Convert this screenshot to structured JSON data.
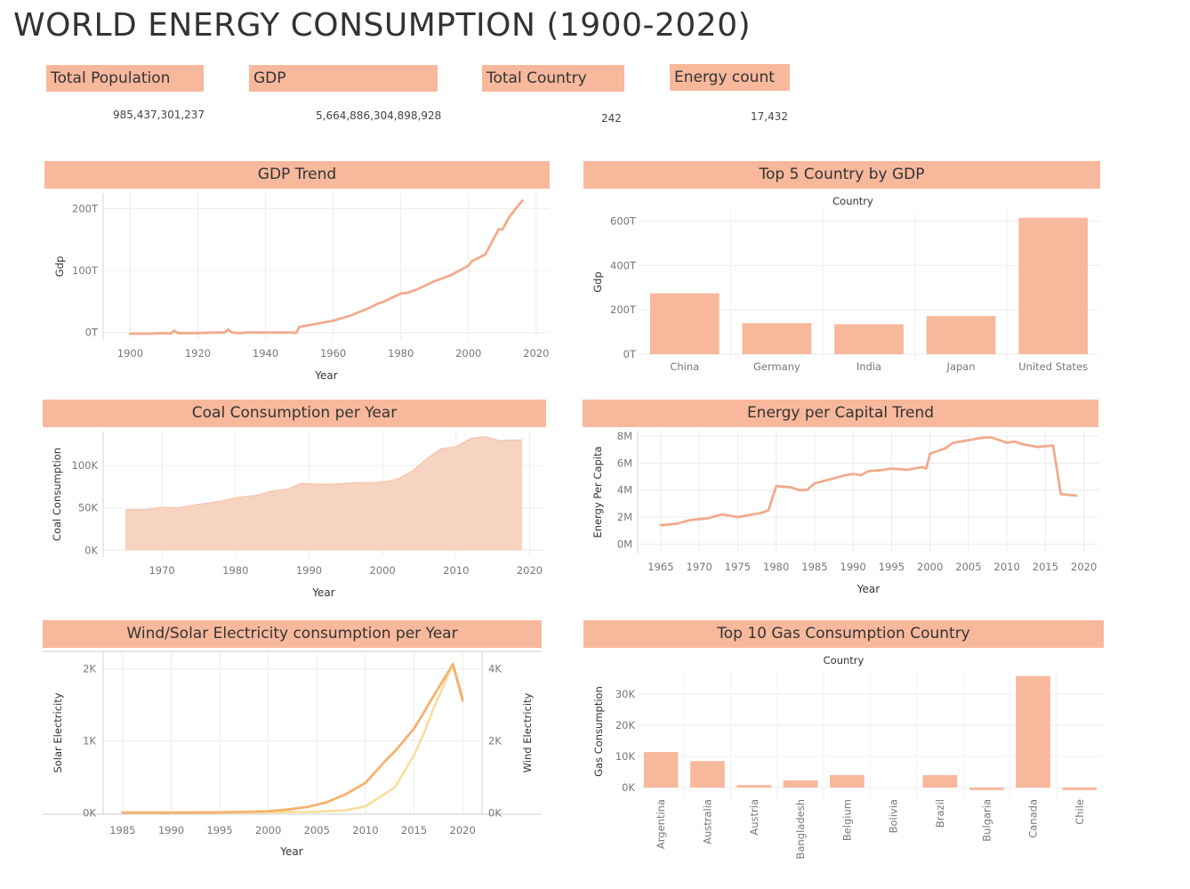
{
  "page_title": "WORLD ENERGY CONSUMPTION (1900-2020)",
  "colors": {
    "accent": "#f7b89c",
    "line": "#f2ab8c",
    "solar": "#f6b16d",
    "wind": "#f7df9a"
  },
  "kpis": [
    {
      "label": "Total Population",
      "value": "985,437,301,237"
    },
    {
      "label": "GDP",
      "value": "5,664,886,304,898,928"
    },
    {
      "label": "Total Country",
      "value": "242"
    },
    {
      "label": "Energy count",
      "value": "17,432"
    }
  ],
  "chart_data": [
    {
      "id": "gdp_trend",
      "type": "line",
      "title": "GDP Trend",
      "xlabel": "Year",
      "ylabel": "Gdp",
      "xlim": [
        1892,
        2024
      ],
      "ylim": [
        -12,
        225
      ],
      "xticks": [
        1900,
        1920,
        1940,
        1960,
        1980,
        2000,
        2020
      ],
      "yticks": [
        {
          "v": 0,
          "label": "0T"
        },
        {
          "v": 100,
          "label": "100T"
        },
        {
          "v": 200,
          "label": "200T"
        }
      ],
      "x": [
        1900,
        1905,
        1910,
        1912,
        1913,
        1914,
        1915,
        1920,
        1925,
        1928,
        1929,
        1930,
        1932,
        1935,
        1940,
        1945,
        1948,
        1949,
        1950,
        1955,
        1960,
        1965,
        1970,
        1973,
        1975,
        1980,
        1982,
        1985,
        1990,
        1995,
        2000,
        2001,
        2005,
        2008,
        2009,
        2010,
        2012,
        2015,
        2016
      ],
      "y": [
        -2,
        -2,
        -1,
        -2,
        3,
        -1,
        -1,
        -1,
        0,
        0,
        5,
        0,
        -1,
        0,
        0,
        0,
        0,
        -1,
        9,
        14,
        19,
        27,
        38,
        46,
        50,
        63,
        64,
        70,
        83,
        93,
        108,
        115,
        126,
        157,
        167,
        166,
        186,
        207,
        213
      ]
    },
    {
      "id": "top5_gdp",
      "type": "bar",
      "title": "Top 5 Country by GDP",
      "xlabel": "Country",
      "ylabel": "Gdp",
      "ylim": [
        0,
        650
      ],
      "yticks": [
        {
          "v": 0,
          "label": "0T"
        },
        {
          "v": 200,
          "label": "200T"
        },
        {
          "v": 400,
          "label": "400T"
        },
        {
          "v": 600,
          "label": "600T"
        }
      ],
      "categories": [
        "China",
        "Germany",
        "India",
        "Japan",
        "United States"
      ],
      "values": [
        275,
        140,
        135,
        172,
        615
      ]
    },
    {
      "id": "coal",
      "type": "area",
      "title": "Coal Consumption per Year",
      "xlabel": "Year",
      "ylabel": "Coal Consumption",
      "xlim": [
        1962,
        2022
      ],
      "ylim": [
        -8,
        140
      ],
      "xticks": [
        1970,
        1980,
        1990,
        2000,
        2010,
        2020
      ],
      "yticks": [
        {
          "v": 0,
          "label": "0K"
        },
        {
          "v": 50,
          "label": "50K"
        },
        {
          "v": 100,
          "label": "100K"
        }
      ],
      "x": [
        1965,
        1968,
        1970,
        1972,
        1975,
        1978,
        1980,
        1983,
        1985,
        1987,
        1989,
        1991,
        1993,
        1995,
        1997,
        1999,
        2001,
        2002,
        2004,
        2006,
        2008,
        2010,
        2012,
        2014,
        2016,
        2017,
        2019
      ],
      "y": [
        48,
        48,
        51,
        50,
        54,
        58,
        62,
        65,
        70,
        72,
        79,
        78,
        78,
        79,
        80,
        80,
        82,
        84,
        93,
        108,
        120,
        122,
        132,
        134,
        129,
        130,
        130
      ]
    },
    {
      "id": "energy_per_capita",
      "type": "line",
      "title": "Energy per Capital Trend",
      "xlabel": "Year",
      "ylabel": "Energy Per Capita",
      "xlim": [
        1962,
        2022
      ],
      "ylim": [
        -0.7,
        8.4
      ],
      "xticks": [
        1965,
        1970,
        1975,
        1980,
        1985,
        1990,
        1995,
        2000,
        2005,
        2010,
        2015,
        2020
      ],
      "yticks": [
        {
          "v": 0,
          "label": "0M"
        },
        {
          "v": 2,
          "label": "2M"
        },
        {
          "v": 4,
          "label": "4M"
        },
        {
          "v": 6,
          "label": "6M"
        },
        {
          "v": 8,
          "label": "8M"
        }
      ],
      "x": [
        1965,
        1967,
        1969,
        1971,
        1973,
        1975,
        1977,
        1978,
        1979,
        1980,
        1982,
        1983,
        1984,
        1985,
        1987,
        1989,
        1990,
        1991,
        1992,
        1994,
        1995,
        1997,
        1999,
        1999.5,
        2000,
        2002,
        2003,
        2005,
        2007,
        2008,
        2010,
        2011,
        2012,
        2014,
        2016,
        2017,
        2019
      ],
      "y": [
        1.4,
        1.5,
        1.8,
        1.9,
        2.2,
        2.0,
        2.2,
        2.3,
        2.5,
        4.3,
        4.2,
        4.0,
        4.0,
        4.5,
        4.8,
        5.1,
        5.2,
        5.1,
        5.4,
        5.5,
        5.6,
        5.5,
        5.7,
        5.6,
        6.7,
        7.1,
        7.5,
        7.7,
        7.9,
        7.9,
        7.5,
        7.6,
        7.4,
        7.2,
        7.3,
        3.7,
        3.6
      ]
    },
    {
      "id": "wind_solar",
      "type": "line",
      "title": "Wind/Solar Electricity consumption per Year",
      "xlabel": "Year",
      "ylabel": "Solar Electricity",
      "ylabel_right": "Wind Electricity",
      "xlim": [
        1983,
        2022
      ],
      "ylim": [
        -20,
        2240
      ],
      "ylim_right": [
        -40,
        4480
      ],
      "xticks": [
        1985,
        1990,
        1995,
        2000,
        2005,
        2010,
        2015,
        2020
      ],
      "yticks": [
        {
          "v": 0,
          "label": "0K"
        },
        {
          "v": 1000,
          "label": "1K"
        },
        {
          "v": 2000,
          "label": "2K"
        }
      ],
      "yticks_right": [
        {
          "v": 0,
          "label": "0K"
        },
        {
          "v": 2000,
          "label": "2K"
        },
        {
          "v": 4000,
          "label": "4K"
        }
      ],
      "series": [
        {
          "name": "Solar Electricity",
          "axis": "left",
          "x": [
            1985,
            1990,
            1995,
            2000,
            2002,
            2004,
            2006,
            2008,
            2010,
            2012,
            2013,
            2015,
            2016,
            2017,
            2018,
            2019,
            2020
          ],
          "y": [
            2,
            3,
            6,
            22,
            45,
            80,
            145,
            260,
            415,
            715,
            850,
            1170,
            1390,
            1620,
            1840,
            2060,
            1560
          ]
        },
        {
          "name": "Wind Electricity",
          "axis": "right",
          "x": [
            1985,
            1990,
            1995,
            2000,
            2005,
            2008,
            2010,
            2013,
            2015,
            2016,
            2017,
            2018,
            2019,
            2020
          ],
          "y": [
            4,
            5,
            10,
            15,
            30,
            70,
            180,
            700,
            1600,
            2200,
            2900,
            3500,
            4150,
            3200
          ]
        }
      ]
    },
    {
      "id": "top10_gas",
      "type": "bar",
      "title": "Top 10 Gas Consumption Country",
      "xlabel": "Country",
      "ylabel": "Gas Consumption",
      "ylim": [
        -2,
        38
      ],
      "yticks": [
        {
          "v": 0,
          "label": "0K"
        },
        {
          "v": 10,
          "label": "10K"
        },
        {
          "v": 20,
          "label": "20K"
        },
        {
          "v": 30,
          "label": "30K"
        }
      ],
      "categories": [
        "Argentina",
        "Australia",
        "Austria",
        "Bangladesh",
        "Belgium",
        "Bolivia",
        "Brazil",
        "Bulgaria",
        "Canada",
        "Chile"
      ],
      "values": [
        11.4,
        8.5,
        0.8,
        2.3,
        4.0,
        0,
        4.0,
        -0.8,
        35.8,
        -0.8
      ]
    }
  ]
}
